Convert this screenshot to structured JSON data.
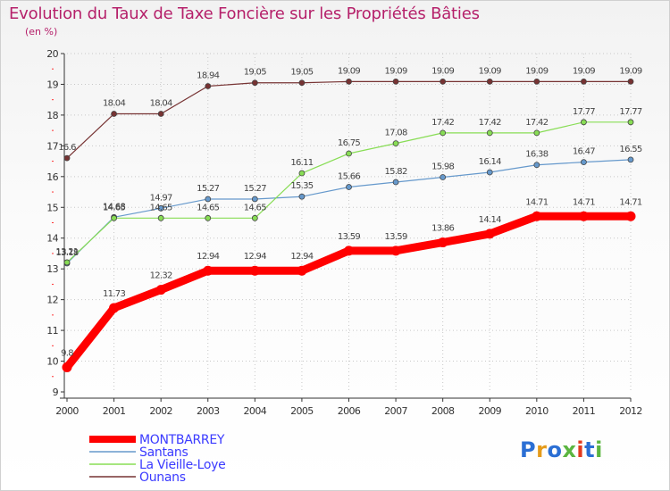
{
  "title": "Evolution du Taux de Taxe Foncière sur les Propriétés Bâties",
  "subtitle": "(en %)",
  "logo": {
    "text": "Proxiti",
    "colors": [
      "#2b6fd4",
      "#e59b1a",
      "#2b6fd4",
      "#5bb540",
      "#e23a1e",
      "#2b6fd4",
      "#5bb540"
    ]
  },
  "chart_data": {
    "type": "line",
    "title": "Evolution du Taux de Taxe Foncière sur les Propriétés Bâties",
    "ylabel": "(en %)",
    "x": [
      "2000",
      "2001",
      "2002",
      "2003",
      "2004",
      "2005",
      "2006",
      "2007",
      "2008",
      "2009",
      "2010",
      "2011",
      "2012"
    ],
    "ylim": [
      9,
      20
    ],
    "yticks": [
      9,
      10,
      11,
      12,
      13,
      14,
      15,
      16,
      17,
      18,
      19,
      20
    ],
    "legend_position": "bottom-left",
    "series": [
      {
        "name": "MONTBARREY",
        "color": "#ff0000",
        "bold": true,
        "values": [
          9.8,
          11.73,
          12.32,
          12.94,
          12.94,
          12.94,
          13.59,
          13.59,
          13.86,
          14.14,
          14.71,
          14.71,
          14.71
        ],
        "labels": [
          "9.8",
          "11.73",
          "12.32",
          "12.94",
          "12.94",
          "12.94",
          "13.59",
          "13.59",
          "13.86",
          "14.14",
          "14.71",
          "14.71",
          "14.71"
        ]
      },
      {
        "name": "Santans",
        "color": "#6699cc",
        "bold": false,
        "values": [
          13.18,
          14.68,
          14.97,
          15.27,
          15.27,
          15.35,
          15.66,
          15.82,
          15.98,
          16.14,
          16.38,
          16.47,
          16.55
        ],
        "labels": [
          "13.18",
          "14.68",
          "14.97",
          "15.27",
          "15.27",
          "15.35",
          "15.66",
          "15.82",
          "15.98",
          "16.14",
          "16.38",
          "16.47",
          "16.55"
        ]
      },
      {
        "name": "La Vieille-Loye",
        "color": "#88dd55",
        "bold": false,
        "values": [
          13.21,
          14.65,
          14.65,
          14.65,
          14.65,
          16.11,
          16.75,
          17.08,
          17.42,
          17.42,
          17.42,
          17.77,
          17.77
        ],
        "labels": [
          "13.21",
          "14.65",
          "14.65",
          "14.65",
          "14.65",
          "16.11",
          "16.75",
          "17.08",
          "17.42",
          "17.42",
          "17.42",
          "17.77",
          "17.77"
        ]
      },
      {
        "name": "Ounans",
        "color": "#773333",
        "bold": false,
        "values": [
          16.6,
          18.04,
          18.04,
          18.94,
          19.05,
          19.05,
          19.09,
          19.09,
          19.09,
          19.09,
          19.09,
          19.09,
          19.09
        ],
        "labels": [
          "16.6",
          "18.04",
          "18.04",
          "18.94",
          "19.05",
          "19.05",
          "19.09",
          "19.09",
          "19.09",
          "19.09",
          "19.09",
          "19.09",
          "19.09"
        ]
      }
    ]
  }
}
